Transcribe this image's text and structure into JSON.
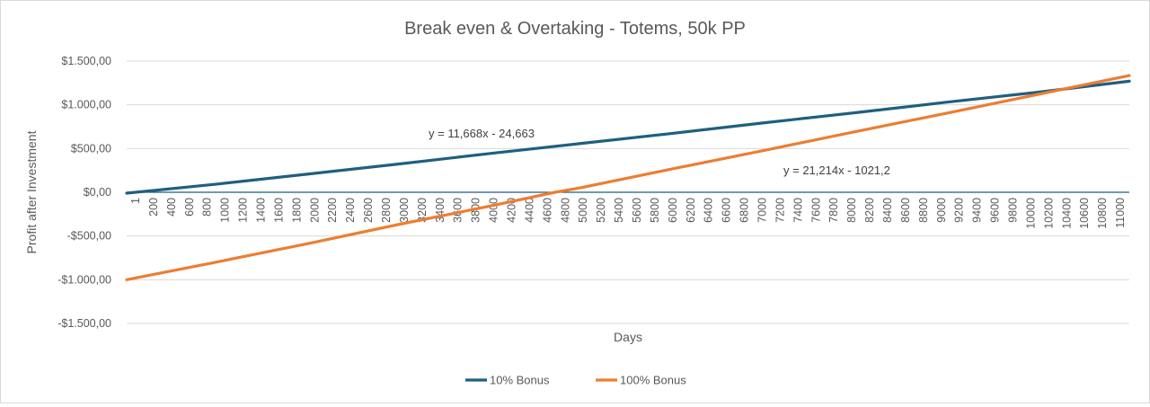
{
  "chart_data": {
    "type": "line",
    "title": "Break even & Overtaking - Totems, 50k PP",
    "xlabel": "Days",
    "ylabel": "Profit after Investment",
    "ylim": [
      -1500,
      1500
    ],
    "y_ticks": [
      1500,
      1000,
      500,
      0,
      -500,
      -1000,
      -1500
    ],
    "y_tick_labels": [
      "$1.500,00",
      "$1.000,00",
      "$500,00",
      "$0,00",
      "-$500,00",
      "-$1.000,00",
      "-$1.500,00"
    ],
    "x_range": [
      1,
      11000
    ],
    "x_tick_labels": [
      "1",
      "200",
      "400",
      "600",
      "800",
      "1000",
      "1200",
      "1400",
      "1600",
      "1800",
      "2000",
      "2200",
      "2400",
      "2600",
      "2800",
      "3000",
      "3200",
      "3400",
      "3600",
      "3800",
      "4000",
      "4200",
      "4400",
      "4600",
      "4800",
      "5000",
      "5200",
      "5400",
      "5600",
      "5800",
      "6000",
      "6200",
      "6400",
      "6600",
      "6800",
      "7000",
      "7200",
      "7400",
      "7600",
      "7800",
      "8000",
      "8200",
      "8400",
      "8600",
      "8800",
      "9000",
      "9200",
      "9400",
      "9600",
      "9800",
      "10000",
      "10200",
      "10400",
      "10600",
      "10800",
      "11000"
    ],
    "grid": true,
    "legend_position": "bottom",
    "series": [
      {
        "name": "10% Bonus",
        "color": "#1f5f7f",
        "trendline": {
          "slope_per_step": 11.668,
          "intercept": -24.663,
          "label": "y = 11,668x - 24,663"
        },
        "x": [
          1,
          1000,
          2000,
          3000,
          4000,
          5000,
          6000,
          7000,
          8000,
          9000,
          10000,
          11000
        ],
        "values": [
          -10,
          95,
          210,
          325,
          445,
          560,
          675,
          795,
          910,
          1030,
          1145,
          1270
        ]
      },
      {
        "name": "100% Bonus",
        "color": "#ed7d31",
        "trendline": {
          "slope_per_step": 21.214,
          "intercept": -1021.2,
          "label": "y = 21,214x - 1021,2"
        },
        "x": [
          1,
          1000,
          2000,
          3000,
          4000,
          4700,
          5000,
          6000,
          7000,
          8000,
          9000,
          10000,
          11000
        ],
        "values": [
          -1000,
          -795,
          -585,
          -365,
          -155,
          0,
          55,
          270,
          480,
          695,
          905,
          1120,
          1335
        ]
      }
    ]
  }
}
